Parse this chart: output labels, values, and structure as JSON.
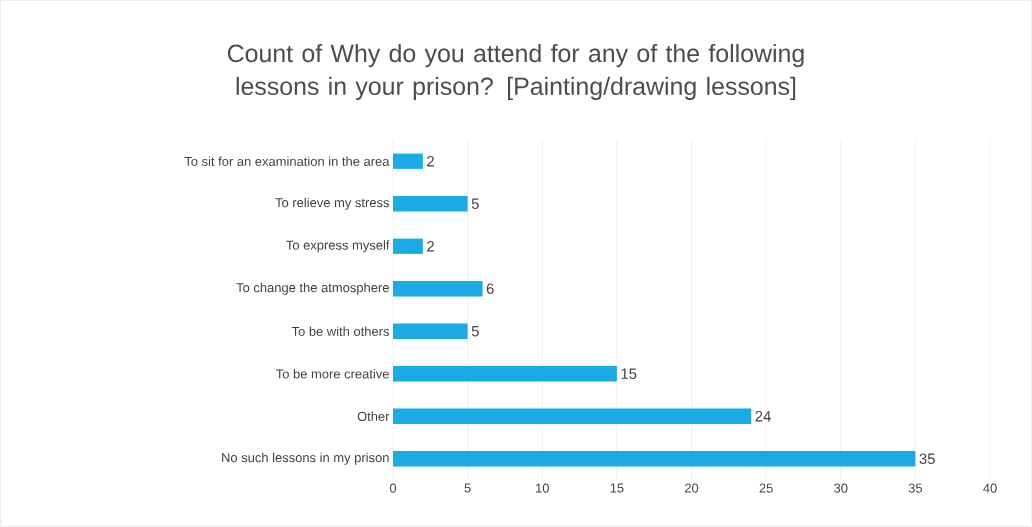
{
  "chart_data": {
    "type": "bar",
    "orientation": "horizontal",
    "title": "Count of Why do you attend for any of the following lessons in your prison? [Painting/drawing lessons]",
    "categories": [
      "To sit for an examination in the area",
      "To relieve my stress",
      "To express myself",
      "To change the atmosphere",
      "To be with others",
      "To be more creative",
      "Other",
      "No such lessons in my prison"
    ],
    "values": [
      2,
      5,
      2,
      6,
      5,
      15,
      24,
      35
    ],
    "color": "#1aabe4",
    "xlim": [
      0,
      40
    ],
    "xticks": [
      0,
      5,
      10,
      15,
      20,
      25,
      30,
      35,
      40
    ],
    "grid": "x",
    "data_labels": true
  }
}
